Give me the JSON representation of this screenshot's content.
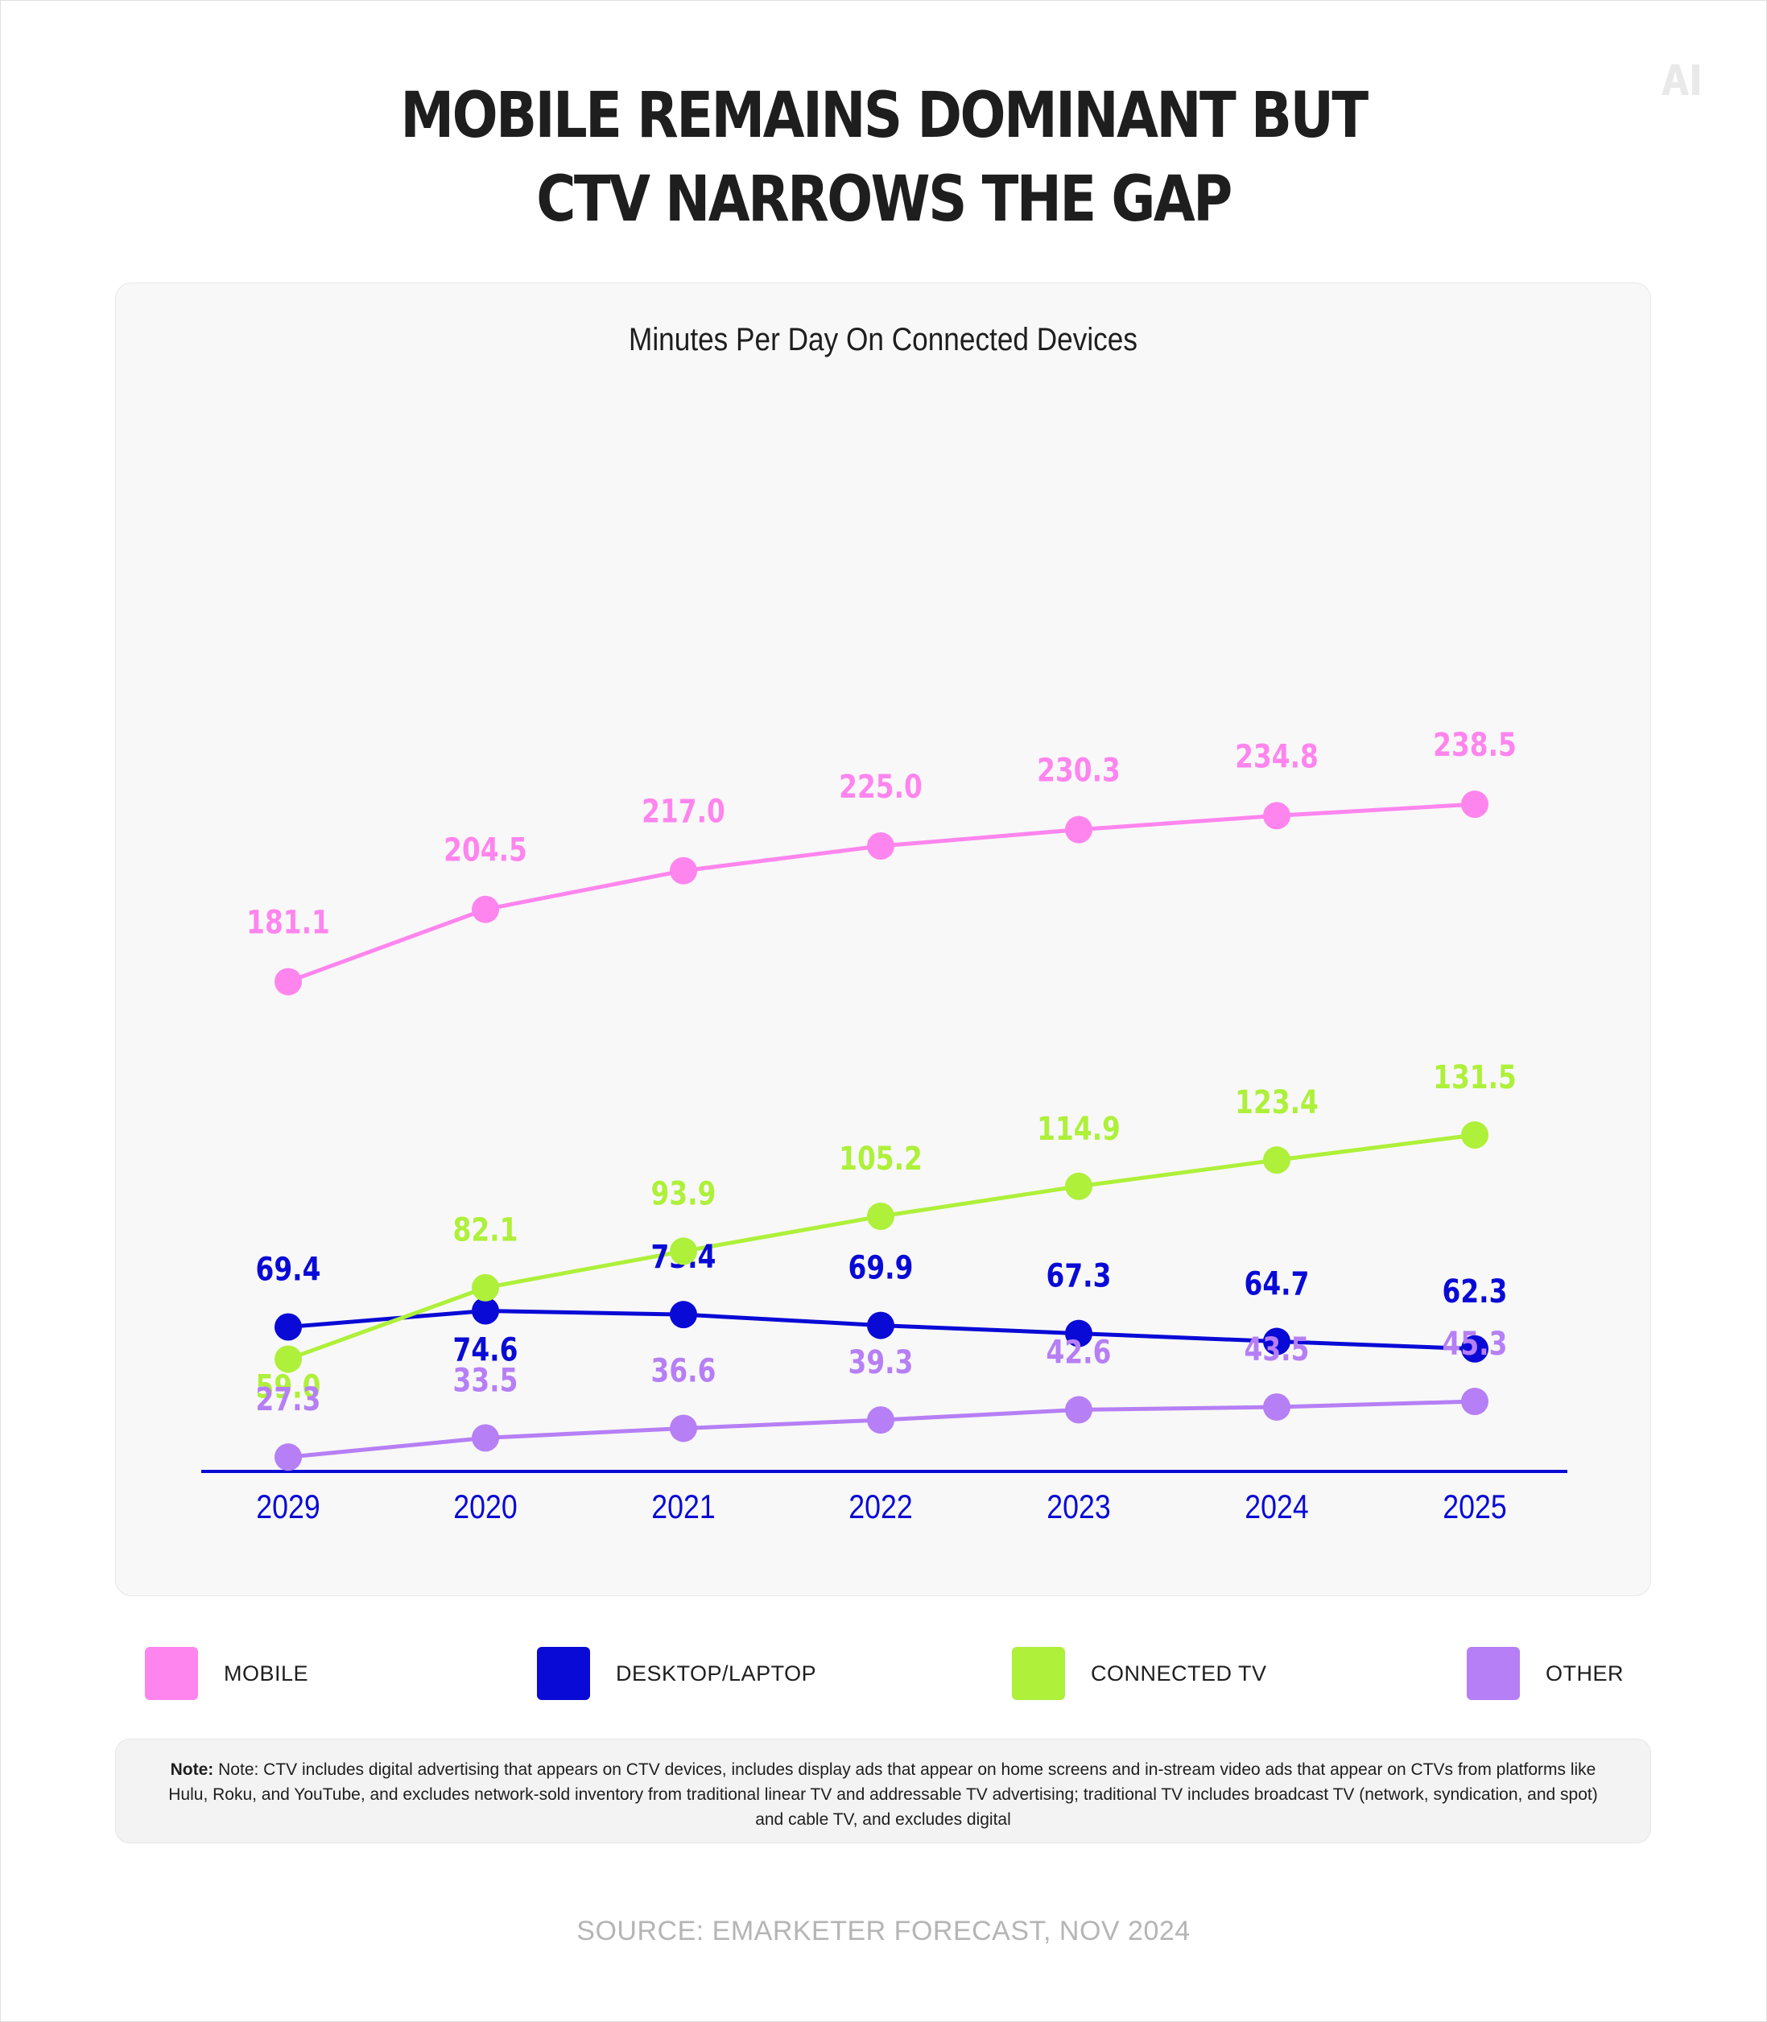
{
  "header": {
    "title_line1": "MOBILE REMAINS DOMINANT BUT",
    "title_line2": "CTV NARROWS THE GAP",
    "logo_text": "AI"
  },
  "chart_data": {
    "type": "line",
    "title": "Minutes Per Day On Connected Devices",
    "xlabel": "",
    "ylabel": "",
    "categories": [
      "2029",
      "2020",
      "2021",
      "2022",
      "2023",
      "2024",
      "2025"
    ],
    "grid": false,
    "legend": "bottom",
    "series": [
      {
        "name": "MOBILE",
        "color": "#ff85ee",
        "values": [
          181.1,
          204.5,
          217.0,
          225.0,
          230.3,
          234.8,
          238.5
        ],
        "labels": [
          "181.1",
          "204.5",
          "217.0",
          "225.0",
          "230.3",
          "234.8",
          "238.5"
        ]
      },
      {
        "name": "DESKTOP/LAPTOP",
        "color": "#0a0ad6",
        "values": [
          69.4,
          74.6,
          73.4,
          69.9,
          67.3,
          64.7,
          62.3
        ],
        "labels": [
          "69.4",
          "74.6",
          "73.4",
          "69.9",
          "67.3",
          "64.7",
          "62.3"
        ]
      },
      {
        "name": "CONNECTED TV",
        "color": "#aef03a",
        "values": [
          59.0,
          82.1,
          93.9,
          105.2,
          114.9,
          123.4,
          131.5
        ],
        "labels": [
          "59.0",
          "82.1",
          "93.9",
          "105.2",
          "114.9",
          "123.4",
          "131.5"
        ]
      },
      {
        "name": "OTHER",
        "color": "#b67ff5",
        "values": [
          27.3,
          33.5,
          36.6,
          39.3,
          42.6,
          43.5,
          45.3
        ],
        "labels": [
          "27.3",
          "33.5",
          "36.6",
          "39.3",
          "42.6",
          "43.5",
          "45.3"
        ]
      }
    ]
  },
  "legend": {
    "items": [
      {
        "label": "MOBILE",
        "color": "#ff85ee"
      },
      {
        "label": "DESKTOP/LAPTOP",
        "color": "#0a0ad6"
      },
      {
        "label": "CONNECTED TV",
        "color": "#aef03a"
      },
      {
        "label": "OTHER",
        "color": "#b67ff5"
      }
    ]
  },
  "note": {
    "label": "Note:",
    "text": "Note: CTV includes digital advertising that appears on CTV devices, includes display ads that appear on home screens and in-stream video ads that appear on CTVs from platforms like Hulu, Roku, and YouTube, and excludes network-sold inventory from traditional linear TV and addressable TV advertising; traditional TV includes broadcast TV (network, syndication, and spot) and cable TV, and excludes digital"
  },
  "source": "SOURCE: EMARKETER FORECAST, NOV 2024",
  "axis_color": "#0a0ad6"
}
